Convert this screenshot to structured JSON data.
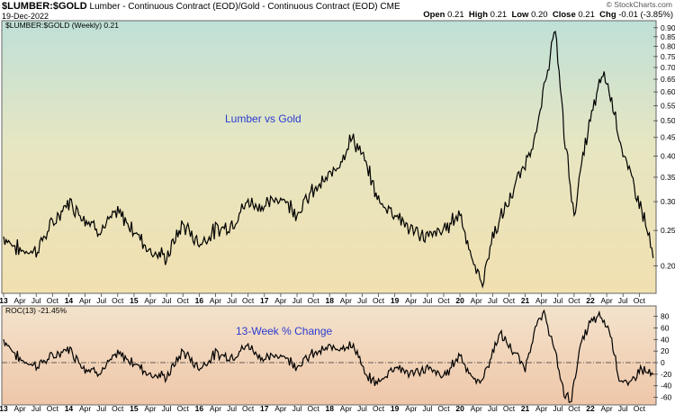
{
  "header": {
    "symbol": "$LUMBER:$GOLD",
    "description": "Lumber - Continuous Contract (EOD)/Gold - Continuous Contract (EOD)",
    "exchange": "CME",
    "date": "19-Dec-2022",
    "brand": "© StockCharts.com",
    "ohlc": {
      "open_label": "Open",
      "open": "0.21",
      "high_label": "High",
      "high": "0.21",
      "low_label": "Low",
      "low": "0.20",
      "close_label": "Close",
      "close": "0.21",
      "chg_label": "Chg",
      "chg": "-0.01 (-3.85%)"
    }
  },
  "chart_data": [
    {
      "type": "line",
      "panel_label": "$LUMBER:$GOLD (Weekly) 0.21",
      "annotation": "Lumber vs Gold",
      "y_scale": "log",
      "ylim": [
        0.17,
        0.93
      ],
      "y_ticks": [
        0.2,
        0.25,
        0.3,
        0.35,
        0.4,
        0.45,
        0.5,
        0.55,
        0.6,
        0.65,
        0.7,
        0.75,
        0.8,
        0.85,
        0.9
      ],
      "x_ticks": [
        "13",
        "Apr",
        "Jul",
        "Oct",
        "14",
        "Apr",
        "Jul",
        "Oct",
        "15",
        "Apr",
        "Jul",
        "Oct",
        "16",
        "Apr",
        "Jul",
        "Oct",
        "17",
        "Apr",
        "Jul",
        "Oct",
        "18",
        "Apr",
        "Jul",
        "Oct",
        "19",
        "Apr",
        "Jul",
        "Oct",
        "20",
        "Apr",
        "Jul",
        "Oct",
        "21",
        "Apr",
        "Jul",
        "Oct",
        "22",
        "Apr",
        "Jul",
        "Oct"
      ],
      "grid": false,
      "series": [
        {
          "x": [
            2013.0,
            2013.25,
            2013.5,
            2013.75,
            2014.0,
            2014.25,
            2014.5,
            2014.75,
            2015.0,
            2015.25,
            2015.5,
            2015.75,
            2016.0,
            2016.25,
            2016.5,
            2016.75,
            2017.0,
            2017.25,
            2017.5,
            2017.75,
            2018.0,
            2018.2,
            2018.35,
            2018.5,
            2018.75,
            2019.0,
            2019.25,
            2019.5,
            2019.75,
            2020.0,
            2020.2,
            2020.35,
            2020.5,
            2020.75,
            2021.0,
            2021.2,
            2021.35,
            2021.45,
            2021.6,
            2021.75,
            2022.0,
            2022.2,
            2022.35,
            2022.5,
            2022.75,
            2022.97
          ],
          "y": [
            0.24,
            0.22,
            0.22,
            0.26,
            0.3,
            0.27,
            0.25,
            0.28,
            0.25,
            0.22,
            0.21,
            0.26,
            0.23,
            0.25,
            0.26,
            0.3,
            0.29,
            0.31,
            0.28,
            0.32,
            0.35,
            0.4,
            0.45,
            0.4,
            0.3,
            0.28,
            0.25,
            0.24,
            0.25,
            0.28,
            0.2,
            0.18,
            0.24,
            0.3,
            0.38,
            0.48,
            0.7,
            0.88,
            0.45,
            0.27,
            0.5,
            0.68,
            0.55,
            0.4,
            0.3,
            0.21
          ]
        }
      ]
    },
    {
      "type": "line",
      "panel_label": "ROC(13) -21.45%",
      "annotation": "13-Week % Change",
      "ylim": [
        -70,
        95
      ],
      "y_ticks": [
        80,
        60,
        40,
        20,
        0,
        -20,
        -40,
        -60
      ],
      "zero_line": "dash-dot",
      "grid": false,
      "series": [
        {
          "x": [
            2013.0,
            2013.25,
            2013.5,
            2013.75,
            2014.0,
            2014.25,
            2014.5,
            2014.75,
            2015.0,
            2015.25,
            2015.5,
            2015.75,
            2016.0,
            2016.25,
            2016.5,
            2016.75,
            2017.0,
            2017.25,
            2017.5,
            2017.75,
            2018.0,
            2018.25,
            2018.4,
            2018.55,
            2018.75,
            2019.0,
            2019.25,
            2019.5,
            2019.75,
            2020.0,
            2020.2,
            2020.3,
            2020.45,
            2020.6,
            2020.75,
            2021.0,
            2021.15,
            2021.3,
            2021.45,
            2021.6,
            2021.7,
            2021.85,
            2022.0,
            2022.15,
            2022.3,
            2022.45,
            2022.6,
            2022.75,
            2022.97
          ],
          "y": [
            40,
            5,
            -5,
            10,
            25,
            -10,
            -15,
            15,
            0,
            -20,
            -25,
            20,
            -10,
            15,
            10,
            30,
            5,
            15,
            -5,
            15,
            25,
            30,
            25,
            -25,
            -35,
            -5,
            -20,
            -10,
            -25,
            15,
            -30,
            -35,
            0,
            50,
            30,
            -10,
            60,
            85,
            20,
            -55,
            -65,
            30,
            70,
            80,
            55,
            -30,
            -40,
            -10,
            -21
          ]
        }
      ]
    }
  ]
}
